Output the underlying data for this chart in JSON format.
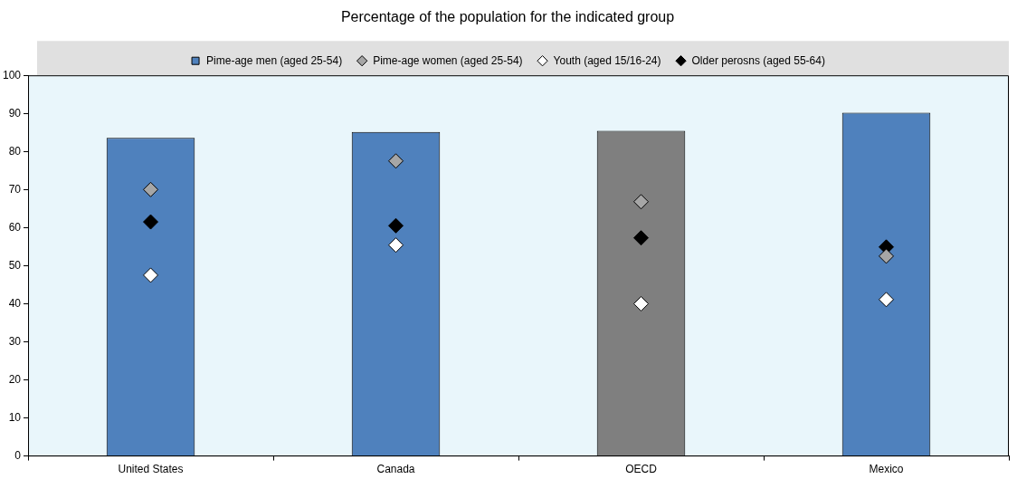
{
  "chart_data": {
    "type": "bar",
    "title": "Percentage of the population for the indicated group",
    "categories": [
      "United States",
      "Canada",
      "OECD",
      "Mexico"
    ],
    "series": [
      {
        "name": "Pime-age men (aged 25-54)",
        "color": "#4f81bd",
        "colors": [
          "#4f81bd",
          "#4f81bd",
          "#7f7f7f",
          "#4f81bd"
        ],
        "values": [
          83.6,
          85.1,
          85.4,
          90.2
        ]
      },
      {
        "name": "Pime-age women (aged 25-54)",
        "type": "scatter",
        "color": "#a6a6a6",
        "values": [
          70,
          77.5,
          66.8,
          52.5
        ]
      },
      {
        "name": "Youth (aged 15/16-24)",
        "type": "scatter",
        "color": "#ffffff",
        "values": [
          47.5,
          55.4,
          40,
          41.1
        ]
      },
      {
        "name": "Older perosns (aged 55-64)",
        "type": "scatter",
        "color": "#000000",
        "values": [
          61.5,
          60.5,
          57.3,
          54.9
        ]
      }
    ],
    "ylim": [
      0,
      100
    ],
    "yticks": [
      0,
      10,
      20,
      30,
      40,
      50,
      60,
      70,
      80,
      90,
      100
    ],
    "grid": false,
    "legend": "top",
    "marker": "diamond"
  }
}
